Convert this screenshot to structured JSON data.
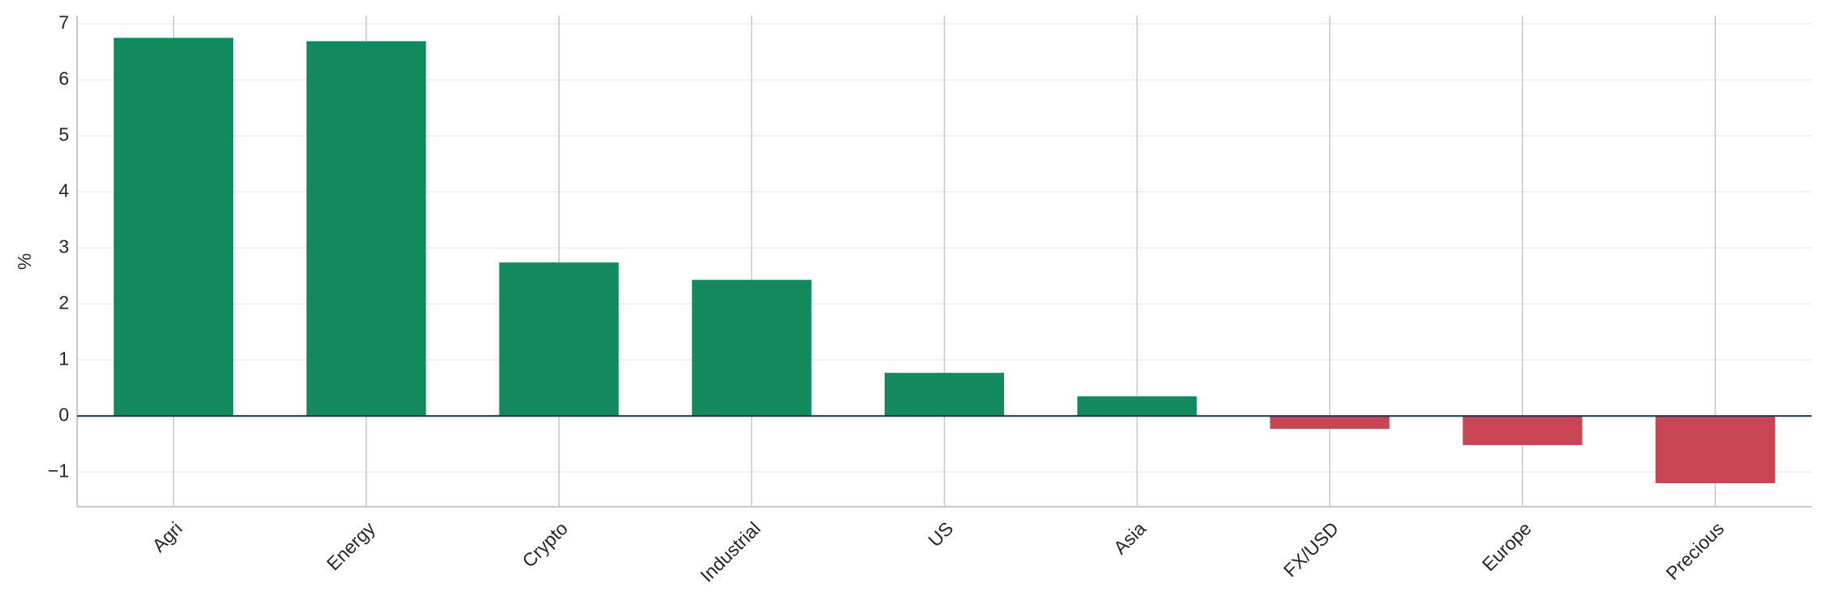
{
  "chart_data": {
    "type": "bar",
    "y_label": "%",
    "categories": [
      "Agri",
      "Energy",
      "Crypto",
      "Industrial",
      "US",
      "Asia",
      "FX/USD",
      "Europe",
      "Precious"
    ],
    "values": [
      6.75,
      6.69,
      2.74,
      2.43,
      0.77,
      0.35,
      -0.23,
      -0.52,
      -1.2
    ],
    "colors": [
      "#138a5e",
      "#138a5e",
      "#138a5e",
      "#138a5e",
      "#138a5e",
      "#138a5e",
      "#c84654",
      "#c84654",
      "#c84654"
    ],
    "ylim": [
      -1.62,
      7.15
    ],
    "yticks": [
      {
        "value": -1,
        "label": "−1"
      },
      0,
      1,
      2,
      3,
      4,
      5,
      6,
      7
    ],
    "grid": true
  }
}
